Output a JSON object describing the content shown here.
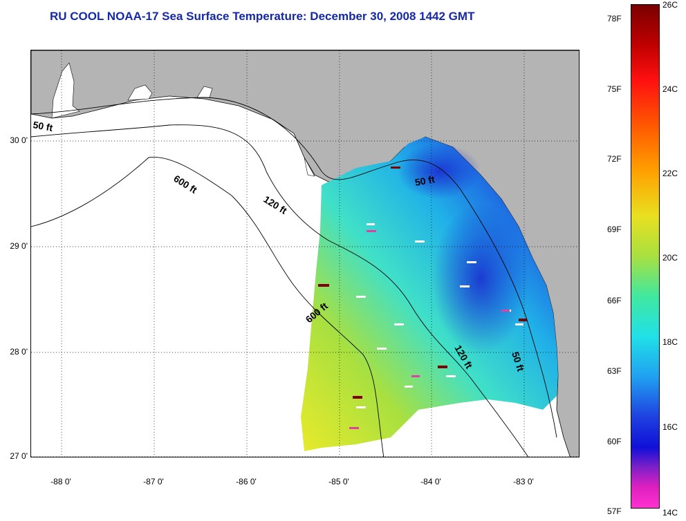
{
  "title": "RU COOL  NOAA-17  Sea Surface Temperature:  December 30, 2008 1442 GMT",
  "lat_labels": [
    "30 0'",
    "29 0'",
    "28 0'",
    "27 0'"
  ],
  "lon_labels": [
    "-88 0'",
    "-87 0'",
    "-86 0'",
    "-85 0'",
    "-84 0'",
    "-83 0'"
  ],
  "contour_labels": [
    "50 ft",
    "600 ft",
    "120 ft",
    "50 ft",
    "600 ft",
    "120 ft",
    "50 ft"
  ],
  "colorbar": {
    "fahrenheit": [
      "78F",
      "75F",
      "72F",
      "69F",
      "66F",
      "63F",
      "60F",
      "57F"
    ],
    "celsius": [
      "26C",
      "24C",
      "22C",
      "20C",
      "18C",
      "16C",
      "14C"
    ]
  },
  "colors": {
    "land": "#b4b4b4",
    "title": "#1428a8",
    "cold": "#1e3cdc",
    "mid": "#28e0e0",
    "warm": "#e6e628"
  }
}
